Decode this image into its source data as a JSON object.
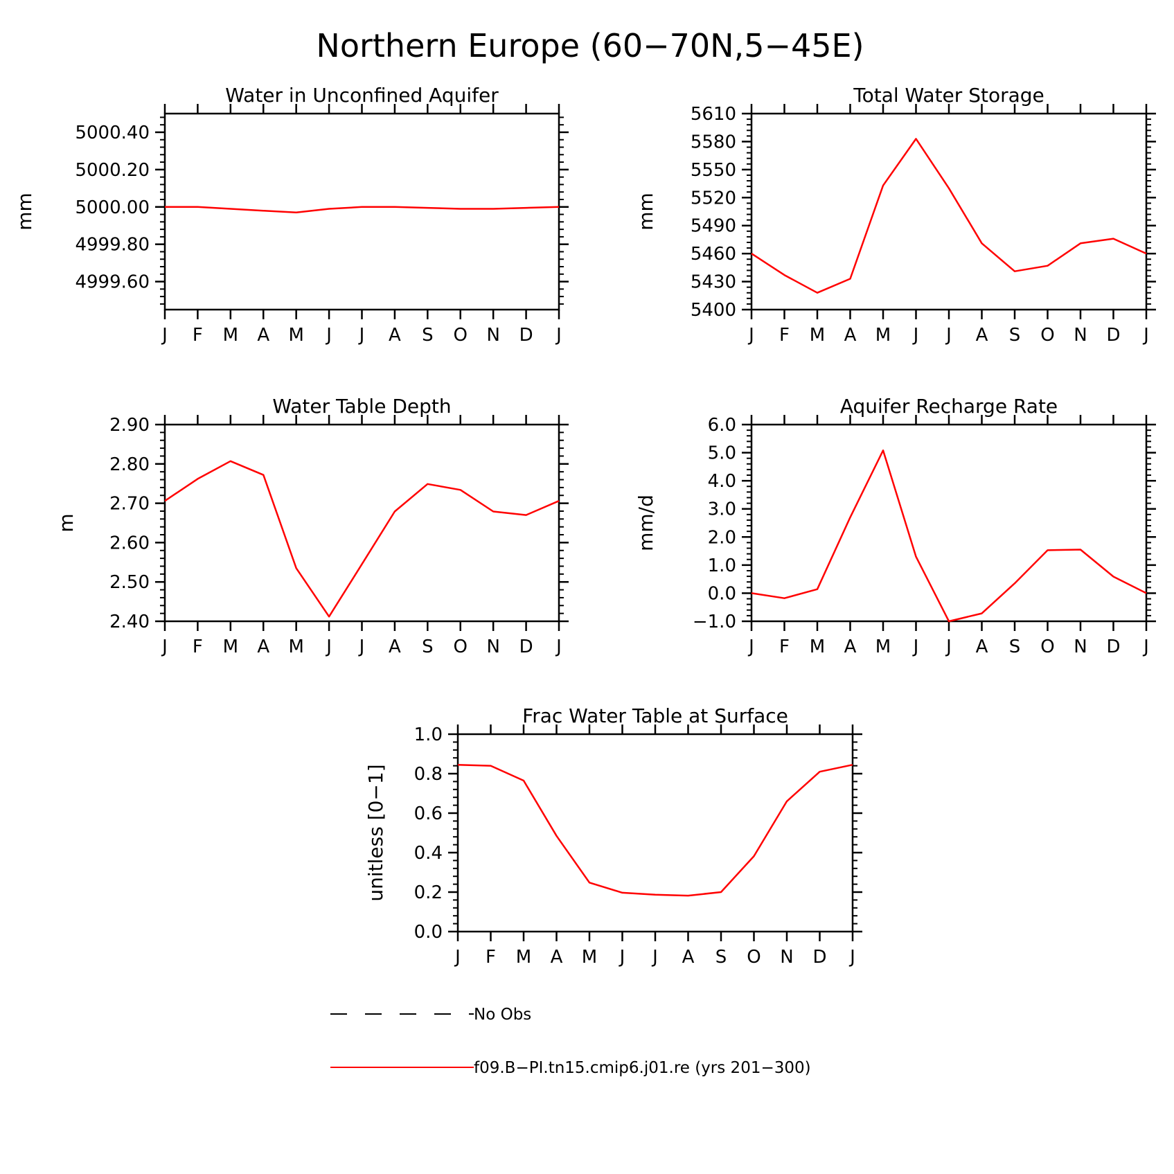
{
  "title": "Northern Europe (60−70N,5−45E)",
  "colors": {
    "model": "#ff0000",
    "obs": "#000000",
    "axes": "#000000"
  },
  "chart_data": [
    {
      "type": "line",
      "title": "Water in Unconfined Aquifer",
      "ylabel": "mm",
      "categories": [
        "J",
        "F",
        "M",
        "A",
        "M",
        "J",
        "J",
        "A",
        "S",
        "O",
        "N",
        "D",
        "J"
      ],
      "ylim": [
        4999.45,
        5000.5
      ],
      "yticks": [
        4999.6,
        4999.8,
        5000.0,
        5000.2,
        5000.4
      ],
      "ytick_labels": [
        "4999.60",
        "4999.80",
        "5000.00",
        "5000.20",
        "5000.40"
      ],
      "series": [
        {
          "name": "f09.B−PI.tn15.cmip6.j01.re (yrs 201−300)",
          "values": [
            5000.0,
            5000.0,
            4999.99,
            4999.98,
            4999.97,
            4999.99,
            5000.0,
            5000.0,
            4999.995,
            4999.99,
            4999.99,
            4999.995,
            5000.0
          ]
        }
      ]
    },
    {
      "type": "line",
      "title": "Total Water Storage",
      "ylabel": "mm",
      "categories": [
        "J",
        "F",
        "M",
        "A",
        "M",
        "J",
        "J",
        "A",
        "S",
        "O",
        "N",
        "D",
        "J"
      ],
      "ylim": [
        5400,
        5610
      ],
      "yticks": [
        5400,
        5430,
        5460,
        5490,
        5520,
        5550,
        5580,
        5610
      ],
      "ytick_labels": [
        "5400",
        "5430",
        "5460",
        "5490",
        "5520",
        "5550",
        "5580",
        "5610"
      ],
      "series": [
        {
          "name": "f09.B−PI.tn15.cmip6.j01.re (yrs 201−300)",
          "values": [
            5460,
            5437,
            5418,
            5433,
            5533,
            5583,
            5530,
            5471,
            5441,
            5447,
            5471,
            5476,
            5460
          ]
        }
      ]
    },
    {
      "type": "line",
      "title": "Water Table Depth",
      "ylabel": "m",
      "categories": [
        "J",
        "F",
        "M",
        "A",
        "M",
        "J",
        "J",
        "A",
        "S",
        "O",
        "N",
        "D",
        "J"
      ],
      "ylim": [
        2.4,
        2.9
      ],
      "yticks": [
        2.4,
        2.5,
        2.6,
        2.7,
        2.8,
        2.9
      ],
      "ytick_labels": [
        "2.40",
        "2.50",
        "2.60",
        "2.70",
        "2.80",
        "2.90"
      ],
      "series": [
        {
          "name": "f09.B−PI.tn15.cmip6.j01.re (yrs 201−300)",
          "values": [
            2.706,
            2.762,
            2.807,
            2.772,
            2.535,
            2.412,
            2.545,
            2.679,
            2.749,
            2.734,
            2.679,
            2.67,
            2.706
          ]
        }
      ]
    },
    {
      "type": "line",
      "title": "Aquifer Recharge Rate",
      "ylabel": "mm/d",
      "categories": [
        "J",
        "F",
        "M",
        "A",
        "M",
        "J",
        "J",
        "A",
        "S",
        "O",
        "N",
        "D",
        "J"
      ],
      "ylim": [
        -1.0,
        6.0
      ],
      "yticks": [
        -1.0,
        0.0,
        1.0,
        2.0,
        3.0,
        4.0,
        5.0,
        6.0
      ],
      "ytick_labels": [
        "−1.0",
        "0.0",
        "1.0",
        "2.0",
        "3.0",
        "4.0",
        "5.0",
        "6.0"
      ],
      "series": [
        {
          "name": "f09.B−PI.tn15.cmip6.j01.re (yrs 201−300)",
          "values": [
            0.0,
            -0.18,
            0.14,
            2.7,
            5.08,
            1.3,
            -1.0,
            -0.72,
            0.35,
            1.53,
            1.55,
            0.59,
            0.0
          ]
        }
      ]
    },
    {
      "type": "line",
      "title": "Frac Water Table at Surface",
      "ylabel": "unitless [0−1]",
      "categories": [
        "J",
        "F",
        "M",
        "A",
        "M",
        "J",
        "J",
        "A",
        "S",
        "O",
        "N",
        "D",
        "J"
      ],
      "ylim": [
        0.0,
        1.0
      ],
      "yticks": [
        0.0,
        0.2,
        0.4,
        0.6,
        0.8,
        1.0
      ],
      "ytick_labels": [
        "0.0",
        "0.2",
        "0.4",
        "0.6",
        "0.8",
        "1.0"
      ],
      "series": [
        {
          "name": "f09.B−PI.tn15.cmip6.j01.re (yrs 201−300)",
          "values": [
            0.845,
            0.84,
            0.765,
            0.485,
            0.248,
            0.197,
            0.187,
            0.182,
            0.2,
            0.382,
            0.66,
            0.81,
            0.845
          ]
        }
      ]
    }
  ],
  "legend": {
    "items": [
      {
        "label": "No Obs",
        "style": "dashed",
        "color": "#000000"
      },
      {
        "label": "f09.B−PI.tn15.cmip6.j01.re (yrs 201−300)",
        "style": "solid",
        "color": "#ff0000"
      }
    ]
  }
}
